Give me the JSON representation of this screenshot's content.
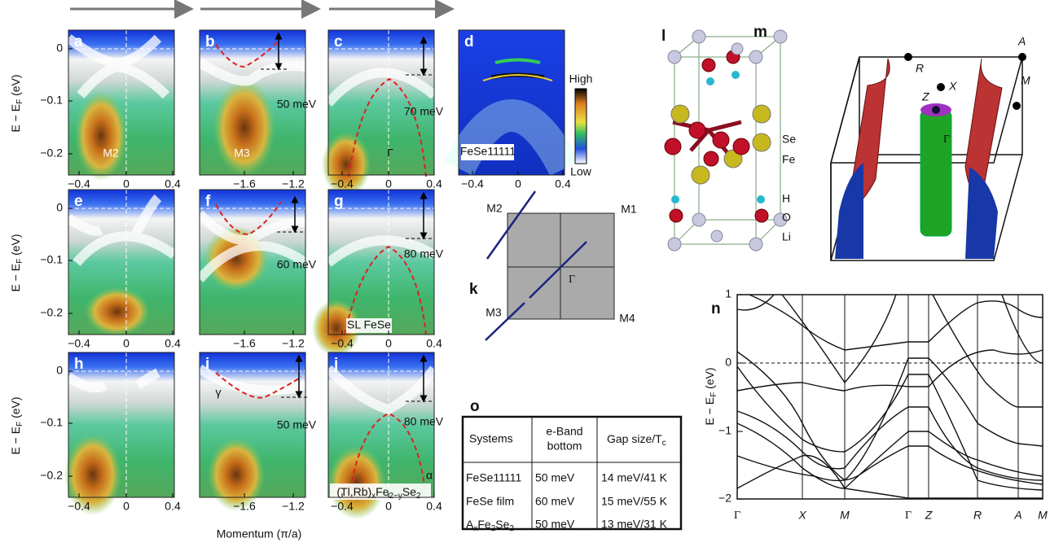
{
  "arpes": {
    "y_axis_label": [
      "E − E",
      "F",
      " (eV)"
    ],
    "x_axis_label": "Momentum (π/a)",
    "y_ticks": [
      "0",
      "−0.1",
      "−0.2"
    ],
    "panels": [
      {
        "letter": "a",
        "x_ticks": [
          "−0.4",
          "0",
          "0.4"
        ],
        "labels": [
          "M2"
        ]
      },
      {
        "letter": "b",
        "x_ticks": [
          "−1.6",
          "−1.2"
        ],
        "labels": [
          "M3",
          "50 meV"
        ]
      },
      {
        "letter": "c",
        "x_ticks": [
          "−0.4",
          "0",
          "0.4"
        ],
        "labels": [
          "Γ",
          "70 meV"
        ]
      },
      {
        "letter": "d",
        "x_ticks": [
          "−0.4",
          "0",
          "0.4"
        ],
        "labels": [
          "FeSe11111"
        ],
        "colorbar": [
          "High",
          "Low"
        ]
      },
      {
        "letter": "e",
        "x_ticks": [
          "−0.4",
          "0",
          "0.4"
        ],
        "labels": []
      },
      {
        "letter": "f",
        "x_ticks": [
          "−1.6",
          "−1.2"
        ],
        "labels": [
          "60 meV"
        ]
      },
      {
        "letter": "g",
        "x_ticks": [
          "−0.4",
          "0",
          "0.4"
        ],
        "labels": [
          "80 meV",
          "SL FeSe"
        ]
      },
      {
        "letter": "h",
        "x_ticks": [
          "−0.4",
          "0",
          "0.4"
        ],
        "labels": []
      },
      {
        "letter": "i",
        "x_ticks": [
          "−1.6",
          "−1.2"
        ],
        "labels": [
          "γ",
          "50 meV"
        ]
      },
      {
        "letter": "j",
        "x_ticks": [
          "−0.4",
          "0",
          "0.4"
        ],
        "labels": [
          "80 meV",
          [
            "(Tl,Rb)",
            "x",
            "Fe",
            "2−y",
            "Se",
            "2"
          ],
          "α"
        ]
      }
    ]
  },
  "brillouin_2d": {
    "letter": "k",
    "labels": [
      "M1",
      "M2",
      "M3",
      "M4",
      "Γ"
    ]
  },
  "crystal": {
    "letter": "l",
    "labels": [
      "Se",
      "Fe",
      "H",
      "O",
      "Li"
    ]
  },
  "fermi_surface": {
    "letter": "m",
    "labels": [
      "R",
      "A",
      "X",
      "M",
      "Z",
      "Γ"
    ]
  },
  "band_structure": {
    "letter": "n",
    "y_axis_label": [
      "E − E",
      "F",
      " (eV)"
    ],
    "y_ticks": [
      "1",
      "0",
      "−1",
      "−2"
    ],
    "x_labels": [
      "Γ",
      "X",
      "M",
      "Γ",
      "Z",
      "R",
      "A",
      "M"
    ]
  },
  "table": {
    "letter": "o",
    "header": [
      "Systems",
      [
        "e-Band",
        "bottom"
      ],
      [
        "Gap size/T",
        "c"
      ]
    ],
    "rows": [
      [
        "FeSe11111",
        "50 meV",
        "14 meV/41 K"
      ],
      [
        "FeSe film",
        "60 meV",
        "15 meV/55 K"
      ],
      [
        [
          "A",
          "x",
          "Fe",
          "2",
          "Se",
          "2"
        ],
        "50 meV",
        "13 meV/31 K"
      ]
    ]
  }
}
